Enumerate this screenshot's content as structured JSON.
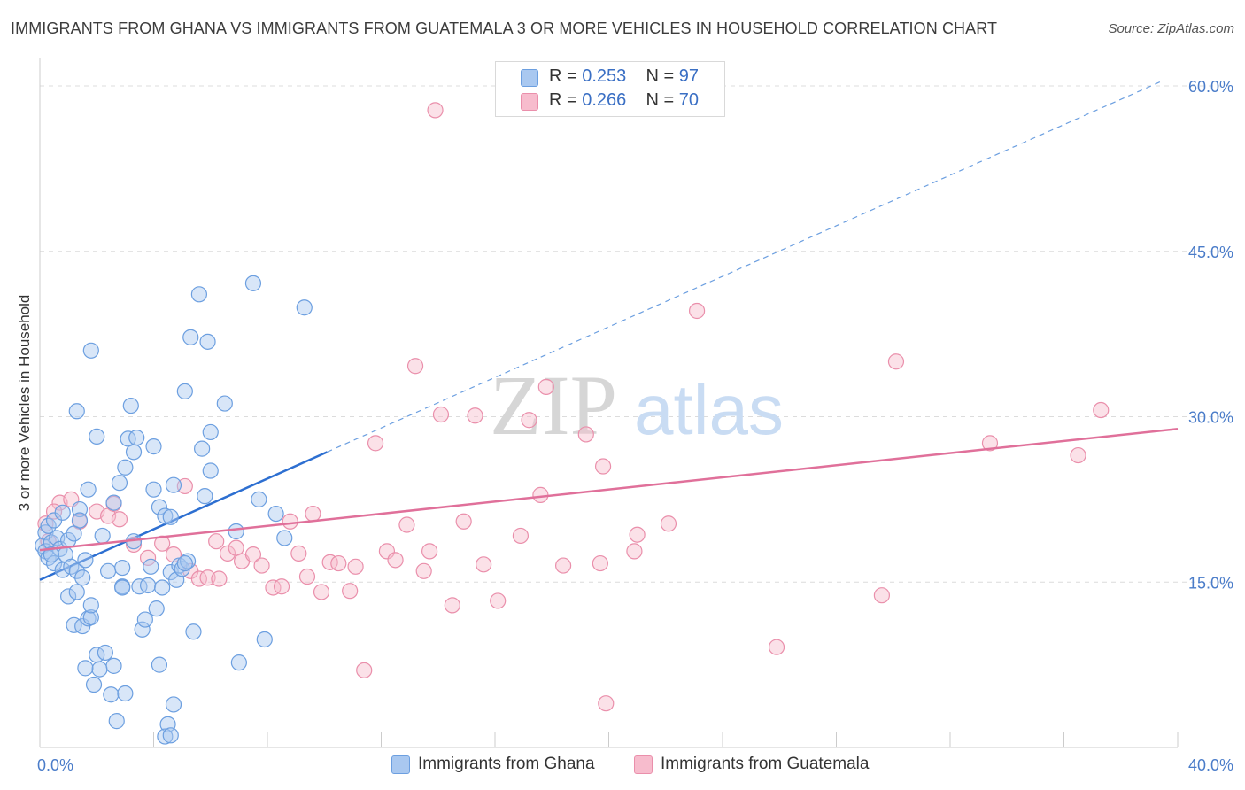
{
  "header": {
    "title": "IMMIGRANTS FROM GHANA VS IMMIGRANTS FROM GUATEMALA 3 OR MORE VEHICLES IN HOUSEHOLD CORRELATION CHART",
    "source": "Source: ZipAtlas.com"
  },
  "watermark": {
    "zip": "ZIP",
    "atlas": "atlas"
  },
  "legend": {
    "ghana": {
      "r_label": "R =",
      "r_value": "0.253",
      "n_label": "N =",
      "n_value": "97"
    },
    "guatemala": {
      "r_label": "R =",
      "r_value": "0.266",
      "n_label": "N =",
      "n_value": "70"
    }
  },
  "colors": {
    "ghana_fill": "#a9c8f0",
    "ghana_stroke": "#6c9fe0",
    "ghana_line": "#2d6fd1",
    "guatemala_fill": "#f7bccd",
    "guatemala_stroke": "#ea8fab",
    "guatemala_line": "#e0709a",
    "tick_text": "#4a7cc9",
    "grid": "#dcdcdc"
  },
  "chart_data": {
    "type": "scatter",
    "title": "IMMIGRANTS FROM GHANA VS IMMIGRANTS FROM GUATEMALA 3 OR MORE VEHICLES IN HOUSEHOLD CORRELATION CHART",
    "xlabel": "",
    "ylabel": "3 or more Vehicles in Household",
    "xlim": [
      0,
      40
    ],
    "ylim": [
      0,
      60
    ],
    "x_tick_labels": [
      "0.0%",
      "40.0%"
    ],
    "y_ticks": [
      15,
      30,
      45,
      60
    ],
    "y_tick_labels": [
      "15.0%",
      "30.0%",
      "45.0%",
      "60.0%"
    ],
    "grid": true,
    "legend_position": "bottom",
    "series": [
      {
        "name": "Immigrants from Ghana",
        "r": 0.253,
        "n": 97,
        "trend": {
          "x": [
            0.0,
            10.1
          ],
          "y": [
            15.2,
            26.8
          ],
          "extended_to": [
            39.5,
            60.5
          ]
        },
        "points": [
          [
            0.1,
            18.3
          ],
          [
            0.2,
            19.5
          ],
          [
            0.2,
            17.8
          ],
          [
            0.3,
            20.1
          ],
          [
            0.3,
            17.2
          ],
          [
            0.4,
            18.6
          ],
          [
            0.5,
            20.6
          ],
          [
            0.5,
            16.7
          ],
          [
            0.6,
            19.0
          ],
          [
            0.7,
            18.0
          ],
          [
            0.8,
            21.3
          ],
          [
            0.8,
            16.1
          ],
          [
            0.9,
            17.5
          ],
          [
            1.0,
            18.8
          ],
          [
            1.0,
            13.7
          ],
          [
            1.1,
            16.4
          ],
          [
            1.2,
            19.4
          ],
          [
            1.2,
            11.1
          ],
          [
            1.3,
            16.0
          ],
          [
            1.3,
            14.1
          ],
          [
            1.4,
            21.6
          ],
          [
            1.4,
            20.6
          ],
          [
            1.5,
            15.4
          ],
          [
            1.5,
            11.0
          ],
          [
            1.6,
            17.0
          ],
          [
            1.7,
            23.4
          ],
          [
            1.7,
            11.7
          ],
          [
            1.8,
            11.8
          ],
          [
            1.8,
            12.9
          ],
          [
            1.9,
            5.7
          ],
          [
            2.0,
            28.2
          ],
          [
            2.0,
            8.4
          ],
          [
            2.1,
            7.1
          ],
          [
            2.2,
            19.2
          ],
          [
            2.3,
            8.6
          ],
          [
            2.4,
            16.0
          ],
          [
            2.5,
            4.8
          ],
          [
            2.6,
            22.2
          ],
          [
            2.6,
            7.4
          ],
          [
            2.7,
            2.4
          ],
          [
            2.8,
            24.0
          ],
          [
            2.9,
            16.3
          ],
          [
            2.9,
            14.6
          ],
          [
            3.0,
            4.9
          ],
          [
            3.0,
            25.4
          ],
          [
            3.1,
            28.0
          ],
          [
            3.2,
            31.0
          ],
          [
            3.3,
            26.8
          ],
          [
            3.3,
            18.7
          ],
          [
            3.4,
            28.1
          ],
          [
            3.5,
            14.6
          ],
          [
            3.6,
            10.7
          ],
          [
            3.7,
            11.6
          ],
          [
            3.8,
            14.7
          ],
          [
            3.9,
            16.4
          ],
          [
            4.0,
            23.4
          ],
          [
            4.0,
            27.3
          ],
          [
            4.1,
            12.6
          ],
          [
            4.2,
            21.8
          ],
          [
            4.2,
            7.5
          ],
          [
            4.4,
            21.0
          ],
          [
            4.5,
            2.1
          ],
          [
            4.6,
            15.9
          ],
          [
            4.7,
            3.9
          ],
          [
            4.8,
            15.2
          ],
          [
            4.9,
            16.5
          ],
          [
            5.0,
            16.2
          ],
          [
            5.1,
            32.3
          ],
          [
            5.2,
            16.9
          ],
          [
            5.3,
            37.2
          ],
          [
            5.4,
            10.5
          ],
          [
            5.6,
            41.1
          ],
          [
            5.7,
            27.1
          ],
          [
            5.8,
            22.8
          ],
          [
            5.9,
            36.8
          ],
          [
            6.0,
            28.6
          ],
          [
            6.0,
            25.1
          ],
          [
            6.5,
            31.2
          ],
          [
            6.9,
            19.6
          ],
          [
            7.0,
            7.7
          ],
          [
            7.5,
            42.1
          ],
          [
            7.7,
            22.5
          ],
          [
            7.9,
            9.8
          ],
          [
            8.3,
            21.2
          ],
          [
            8.6,
            19.0
          ],
          [
            9.3,
            39.9
          ],
          [
            4.4,
            1.0
          ],
          [
            4.6,
            1.1
          ],
          [
            1.8,
            36.0
          ],
          [
            1.3,
            30.5
          ],
          [
            0.4,
            17.5
          ],
          [
            4.7,
            23.8
          ],
          [
            5.1,
            16.7
          ],
          [
            1.6,
            7.2
          ],
          [
            4.3,
            14.5
          ],
          [
            2.9,
            14.5
          ],
          [
            4.6,
            20.9
          ]
        ]
      },
      {
        "name": "Immigrants from Guatemala",
        "r": 0.266,
        "n": 70,
        "trend": {
          "x": [
            0.0,
            40.0
          ],
          "y": [
            17.9,
            28.9
          ]
        },
        "points": [
          [
            0.2,
            20.3
          ],
          [
            0.3,
            18.7
          ],
          [
            0.7,
            22.2
          ],
          [
            1.1,
            22.5
          ],
          [
            1.4,
            20.5
          ],
          [
            2.0,
            21.4
          ],
          [
            2.4,
            21.0
          ],
          [
            2.6,
            22.1
          ],
          [
            2.8,
            20.7
          ],
          [
            3.3,
            18.4
          ],
          [
            3.8,
            17.2
          ],
          [
            4.3,
            18.5
          ],
          [
            4.7,
            17.5
          ],
          [
            5.1,
            23.7
          ],
          [
            5.3,
            16.0
          ],
          [
            5.6,
            15.3
          ],
          [
            5.9,
            15.4
          ],
          [
            6.2,
            18.7
          ],
          [
            6.6,
            17.6
          ],
          [
            6.9,
            18.1
          ],
          [
            7.1,
            16.9
          ],
          [
            7.5,
            17.5
          ],
          [
            7.8,
            16.5
          ],
          [
            8.2,
            14.5
          ],
          [
            8.5,
            14.6
          ],
          [
            8.8,
            20.5
          ],
          [
            9.1,
            17.6
          ],
          [
            9.4,
            15.5
          ],
          [
            9.6,
            21.2
          ],
          [
            9.9,
            14.1
          ],
          [
            10.2,
            16.8
          ],
          [
            10.5,
            16.7
          ],
          [
            10.9,
            14.2
          ],
          [
            11.1,
            16.4
          ],
          [
            11.4,
            7.0
          ],
          [
            11.8,
            27.6
          ],
          [
            12.2,
            17.8
          ],
          [
            12.5,
            17.0
          ],
          [
            12.9,
            20.2
          ],
          [
            13.2,
            34.6
          ],
          [
            13.5,
            16.0
          ],
          [
            13.7,
            17.8
          ],
          [
            14.1,
            30.2
          ],
          [
            14.5,
            12.9
          ],
          [
            14.9,
            20.5
          ],
          [
            15.3,
            30.1
          ],
          [
            15.6,
            16.6
          ],
          [
            16.1,
            13.3
          ],
          [
            16.9,
            19.2
          ],
          [
            17.2,
            29.7
          ],
          [
            17.6,
            22.9
          ],
          [
            17.8,
            32.7
          ],
          [
            18.4,
            16.5
          ],
          [
            19.2,
            28.4
          ],
          [
            19.8,
            25.5
          ],
          [
            19.7,
            16.7
          ],
          [
            19.9,
            4.0
          ],
          [
            21.0,
            19.3
          ],
          [
            20.9,
            17.8
          ],
          [
            22.1,
            20.3
          ],
          [
            23.1,
            39.6
          ],
          [
            25.9,
            9.1
          ],
          [
            29.6,
            13.8
          ],
          [
            30.1,
            35.0
          ],
          [
            33.4,
            27.6
          ],
          [
            36.5,
            26.5
          ],
          [
            37.3,
            30.6
          ],
          [
            13.9,
            57.8
          ],
          [
            6.3,
            15.3
          ],
          [
            0.5,
            21.4
          ]
        ]
      }
    ]
  },
  "bottom_legend": {
    "ghana_label": "Immigrants from Ghana",
    "guatemala_label": "Immigrants from Guatemala"
  }
}
